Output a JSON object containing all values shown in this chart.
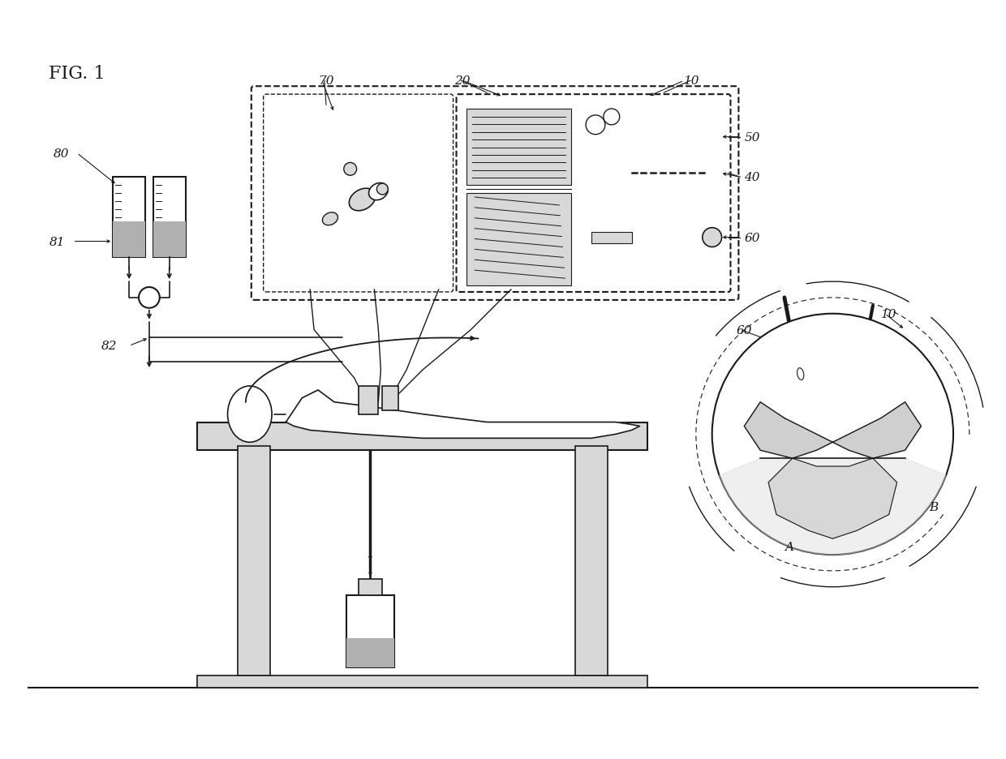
{
  "title": "FIG. 1",
  "bg_color": "#ffffff",
  "line_color": "#1a1a1a",
  "gray_color": "#b0b0b0",
  "light_gray": "#d8d8d8",
  "dark_gray": "#888888",
  "fig_width": 12.4,
  "fig_height": 9.37,
  "dpi": 100
}
